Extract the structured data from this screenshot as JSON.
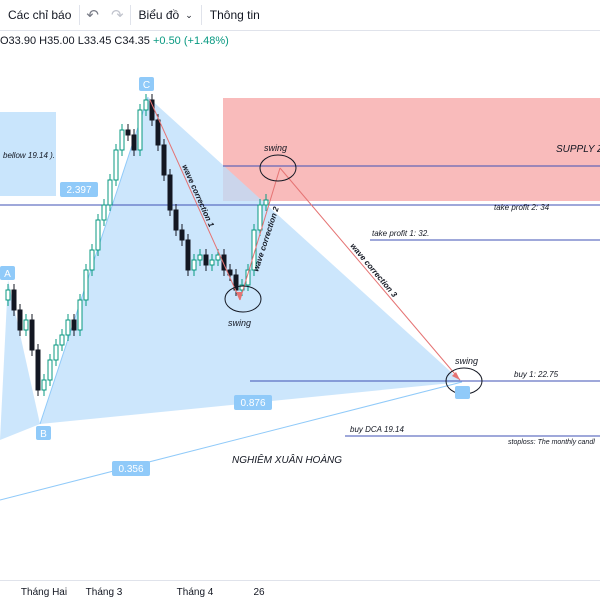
{
  "toolbar": {
    "indicators_label": "Các chỉ báo",
    "undo_icon": "undo-icon",
    "redo_icon": "redo-icon",
    "chart_type_label": "Biểu đồ",
    "info_label": "Thông tin"
  },
  "ohlc": {
    "open": "O33.90",
    "high": "H35.00",
    "low": "L33.45",
    "close": "C34.35",
    "change": "+0.50 (+1.48%)"
  },
  "pattern": {
    "point_A": "A",
    "point_B": "B",
    "point_C": "C",
    "ratio_bc": "2.397",
    "ratio_d": "0.876",
    "ratio_outer": "0.356"
  },
  "annotations": {
    "supply_zone": "SUPPLY ZO",
    "blue_box_text": "bellow 19.14 ).",
    "swing_top": "swing",
    "swing_bottom": "swing",
    "swing_d": "swing",
    "wave1": "wave correction 1",
    "wave2": "wave correction 2",
    "wave3": "wave correction 3",
    "take_profit_2": "take profit 2: 34",
    "take_profit_1": "take profit 1: 32.",
    "buy_1": "buy 1: 22.75",
    "buy_dca": "buy DCA 19.14",
    "stoploss": "stoploss: The monthly candl",
    "author": "NGHIÊM XUÂN HOÀNG"
  },
  "xaxis": {
    "labels": [
      "Tháng Hai",
      "Tháng 3",
      "Tháng 4",
      "26"
    ]
  },
  "colors": {
    "up": "#089981",
    "down": "#131722",
    "pattern_fill": "#bbdefb",
    "supply_zone": "#f8b4b4",
    "level_line": "#3f51b5",
    "wave_arrow": "#e57373"
  },
  "chart_data": {
    "type": "candlestick",
    "title": "",
    "ohlc_last": {
      "open": 33.9,
      "high": 35.0,
      "low": 33.45,
      "close": 34.35,
      "change": 0.5,
      "change_pct": 1.48
    },
    "levels": [
      {
        "label": "take profit 2: 34",
        "value": 34
      },
      {
        "label": "take profit 1: 32.",
        "value": 32
      },
      {
        "label": "buy 1: 22.75",
        "value": 22.75
      },
      {
        "label": "buy DCA 19.14",
        "value": 19.14
      }
    ],
    "harmonic_ratios": [
      2.397,
      0.876,
      0.356
    ]
  }
}
